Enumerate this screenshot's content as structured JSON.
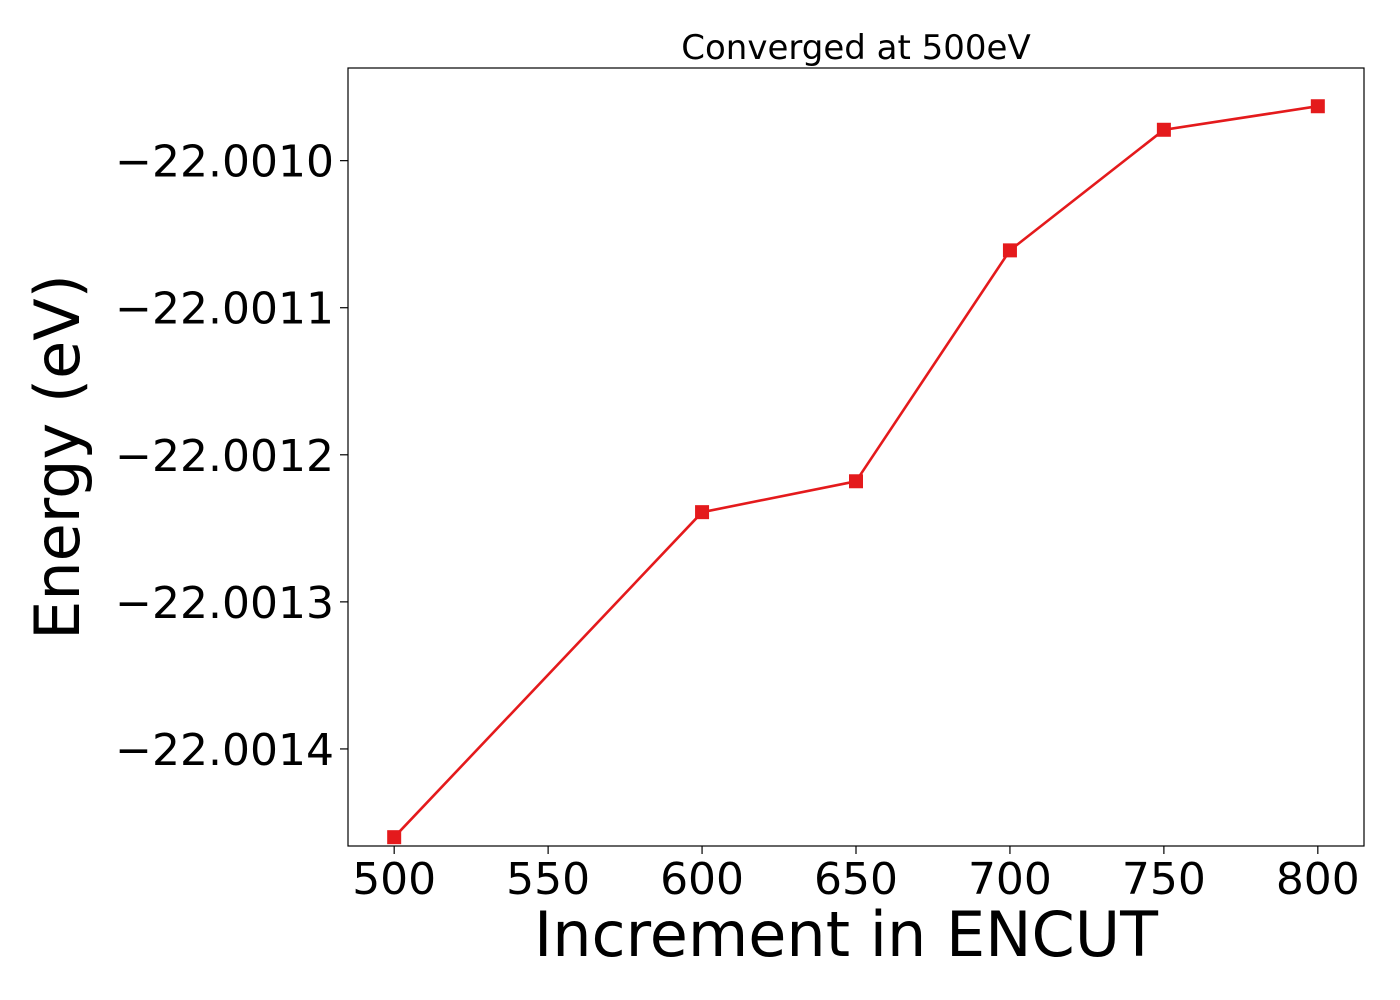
{
  "chart_data": {
    "type": "line",
    "title": "Converged at 500eV",
    "xlabel": "Increment in ENCUT",
    "ylabel": "Energy (eV)",
    "x": [
      500,
      600,
      650,
      700,
      750,
      800
    ],
    "series": [
      {
        "values": [
          -22.00146,
          -22.001239,
          -22.001218,
          -22.001061,
          -22.000979,
          -22.000963
        ],
        "color": "#e41a1c",
        "marker": "square"
      }
    ],
    "xlim": [
      485,
      815
    ],
    "ylim": [
      -22.001466,
      -22.000937
    ],
    "xticks": [
      500,
      550,
      600,
      650,
      700,
      750,
      800
    ],
    "xtick_labels": [
      "500",
      "550",
      "600",
      "650",
      "700",
      "750",
      "800"
    ],
    "yticks": [
      -22.0014,
      -22.0013,
      -22.0012,
      -22.0011,
      -22.001
    ],
    "ytick_labels": [
      "−22.0014",
      "−22.0013",
      "−22.0012",
      "−22.0011",
      "−22.0010"
    ],
    "grid": false,
    "legend": "none"
  }
}
